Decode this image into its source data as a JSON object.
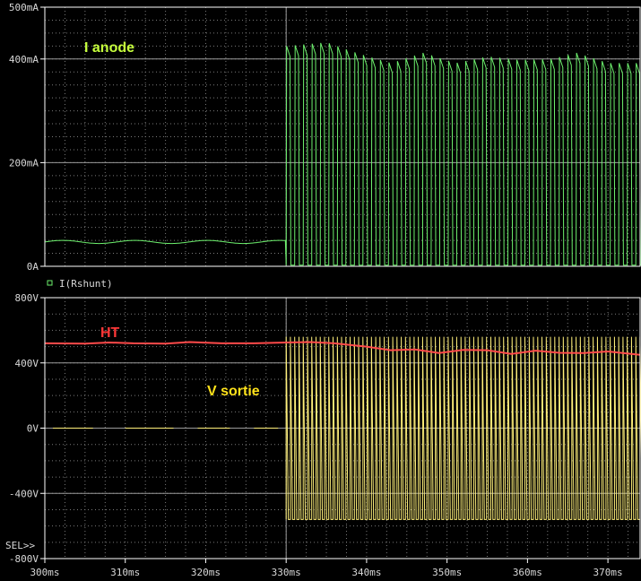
{
  "chart_data": [
    {
      "type": "line",
      "title": "",
      "xlabel": "",
      "ylabel": "",
      "xlim": [
        300,
        374
      ],
      "ylim": [
        0,
        500
      ],
      "y_ticks": [
        "500mA",
        "400mA",
        "200mA",
        "0A"
      ],
      "y_tick_values": [
        500,
        400,
        200,
        0
      ],
      "legend": "I(Rshunt)",
      "legend_placement": "bottom-left",
      "annotations": [
        {
          "text": "I anode",
          "color": "#c6ff3c"
        }
      ],
      "grid": true,
      "series": [
        {
          "name": "I(Rshunt)",
          "color": "#6df06d",
          "units": "mA",
          "x_start": 300,
          "x_end": 374,
          "before_330_mean": 47,
          "before_330_ripple": 3,
          "oscillation_start": 330,
          "oscillation_period": 1.06,
          "oscillation_min": 2,
          "oscillation_peak": 425,
          "peak_envelope": [
            [
              330,
              425
            ],
            [
              335,
              432
            ],
            [
              339,
              410
            ],
            [
              343,
              392
            ],
            [
              347,
              412
            ],
            [
              351,
              392
            ],
            [
              355,
              405
            ],
            [
              359,
              398
            ],
            [
              363,
              400
            ],
            [
              366,
              412
            ],
            [
              370,
              392
            ],
            [
              374,
              392
            ]
          ]
        }
      ]
    },
    {
      "type": "line",
      "title": "",
      "xlabel": "",
      "ylabel": "",
      "xlim": [
        300,
        374
      ],
      "ylim": [
        -800,
        800
      ],
      "y_ticks": [
        "800V",
        "400V",
        "0V",
        "-400V",
        "-800V"
      ],
      "y_tick_values": [
        800,
        400,
        0,
        -400,
        -800
      ],
      "x_ticks": [
        "300ms",
        "310ms",
        "320ms",
        "330ms",
        "340ms",
        "350ms",
        "360ms",
        "370ms"
      ],
      "x_tick_values": [
        300,
        310,
        320,
        330,
        340,
        350,
        360,
        370
      ],
      "cursor_label": "SEL>>",
      "annotations": [
        {
          "text": "HT",
          "color": "#ff3838"
        },
        {
          "text": "V sortie",
          "color": "#ffe21a"
        }
      ],
      "grid": true,
      "series": [
        {
          "name": "HT",
          "color": "#ff4a4a",
          "units": "V",
          "points": [
            [
              300,
              520
            ],
            [
              305,
              518
            ],
            [
              308,
              525
            ],
            [
              311,
              520
            ],
            [
              315,
              518
            ],
            [
              318,
              528
            ],
            [
              322,
              520
            ],
            [
              326,
              520
            ],
            [
              330,
              525
            ],
            [
              333,
              528
            ],
            [
              336,
              520
            ],
            [
              340,
              500
            ],
            [
              343,
              478
            ],
            [
              346,
              482
            ],
            [
              349,
              460
            ],
            [
              352,
              480
            ],
            [
              355,
              478
            ],
            [
              358,
              455
            ],
            [
              361,
              475
            ],
            [
              364,
              462
            ],
            [
              367,
              460
            ],
            [
              370,
              470
            ],
            [
              374,
              450
            ]
          ]
        },
        {
          "name": "V sortie",
          "color": "#fff07a",
          "units": "V",
          "x_start": 300,
          "x_end": 374,
          "before_330_level": 0,
          "before_330_segments": [
            [
              301,
              306
            ],
            [
              310,
              316
            ],
            [
              319,
              323
            ],
            [
              326,
              329
            ]
          ],
          "oscillation_start": 330,
          "oscillation_period": 0.53,
          "oscillation_max": 560,
          "oscillation_min": -560
        }
      ]
    }
  ]
}
